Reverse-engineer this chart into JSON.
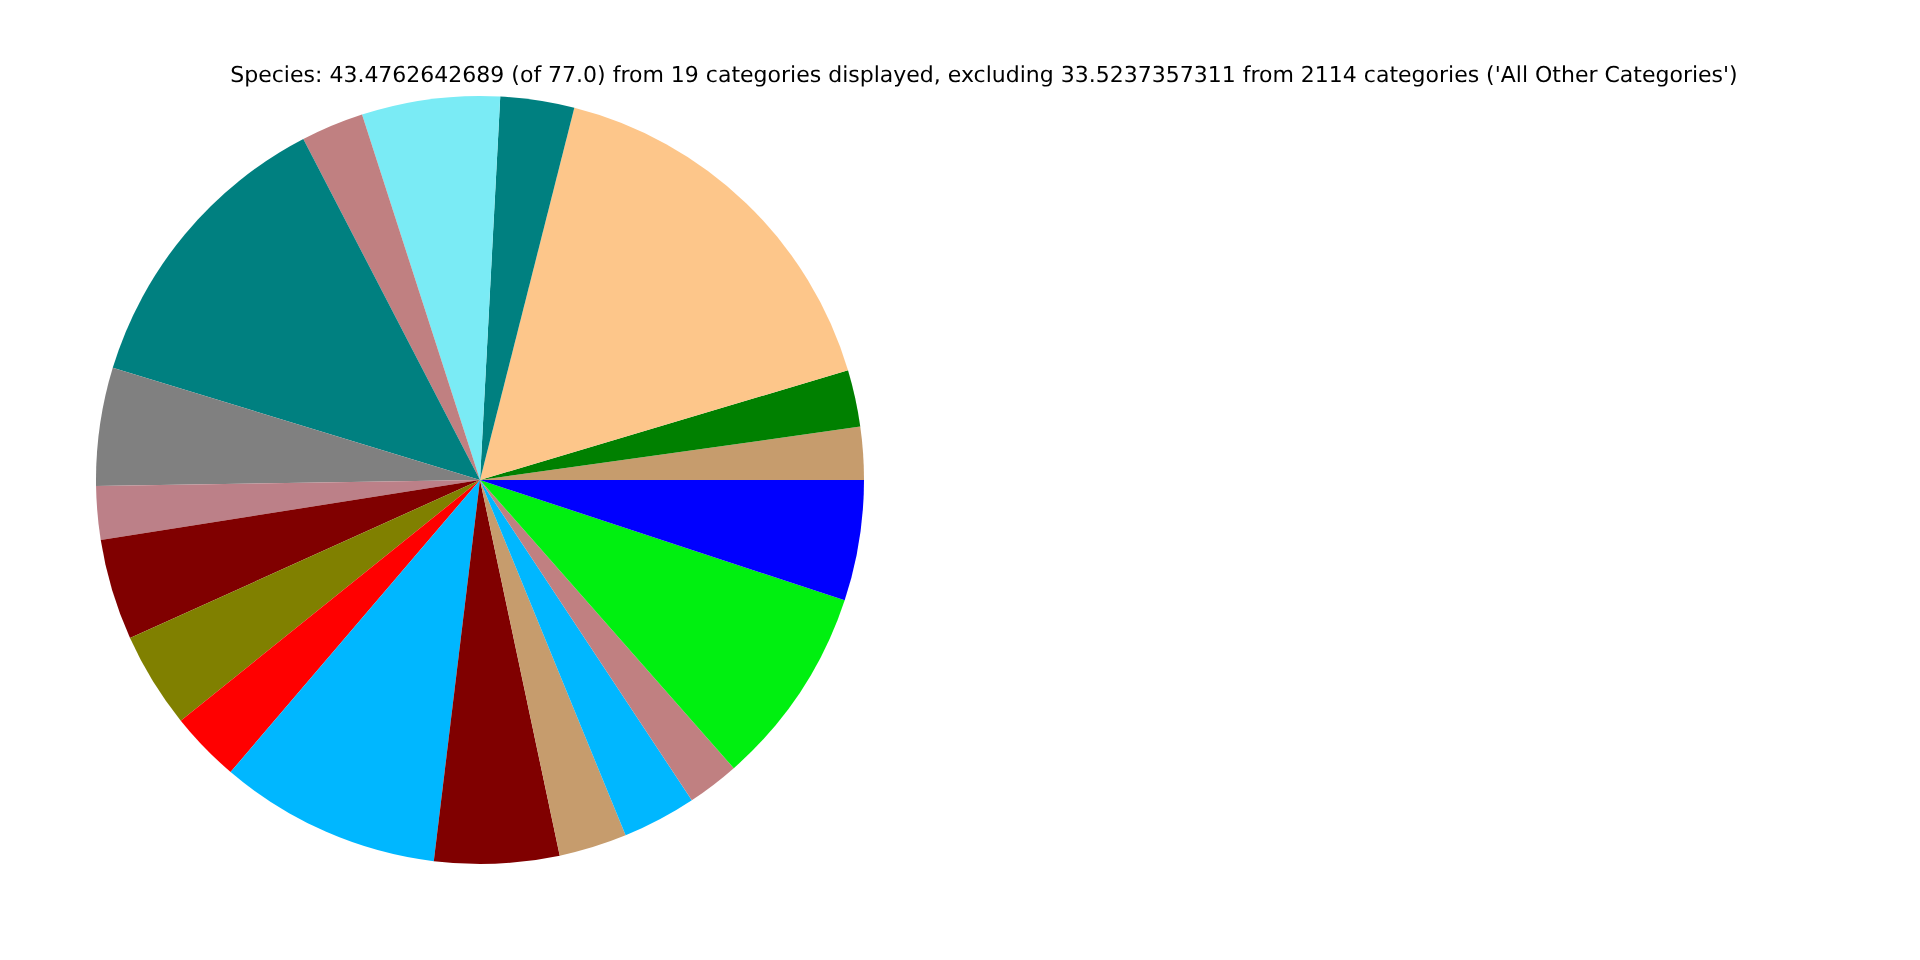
{
  "chart_data": {
    "type": "pie",
    "title": "Species: 43.4762642689 (of 77.0) from 19 categories displayed, excluding 33.5237357311 from 2114 categories ('All Other Categories')",
    "categories": [
      null,
      null,
      null,
      null,
      null,
      null,
      null,
      null,
      null,
      null,
      null,
      null,
      null,
      null,
      null,
      null,
      null,
      null,
      null
    ],
    "values": [
      2.22,
      2.39,
      16.44,
      3.11,
      5.81,
      2.64,
      12.67,
      4.97,
      2.25,
      4.25,
      4.03,
      2.97,
      9.33,
      5.25,
      2.86,
      3.11,
      2.19,
      8.44,
      5.07
    ],
    "colors": [
      "#c69c6d",
      "#008000",
      "#fdc68a",
      "#008080",
      "#7aebf5",
      "#c08081",
      "#008080",
      "#808080",
      "#bc8088",
      "#800000",
      "#808000",
      "#ff0000",
      "#00b7ff",
      "#800000",
      "#c69c6d",
      "#00b7ff",
      "#c08081",
      "#00f010",
      "#0000ff"
    ]
  }
}
